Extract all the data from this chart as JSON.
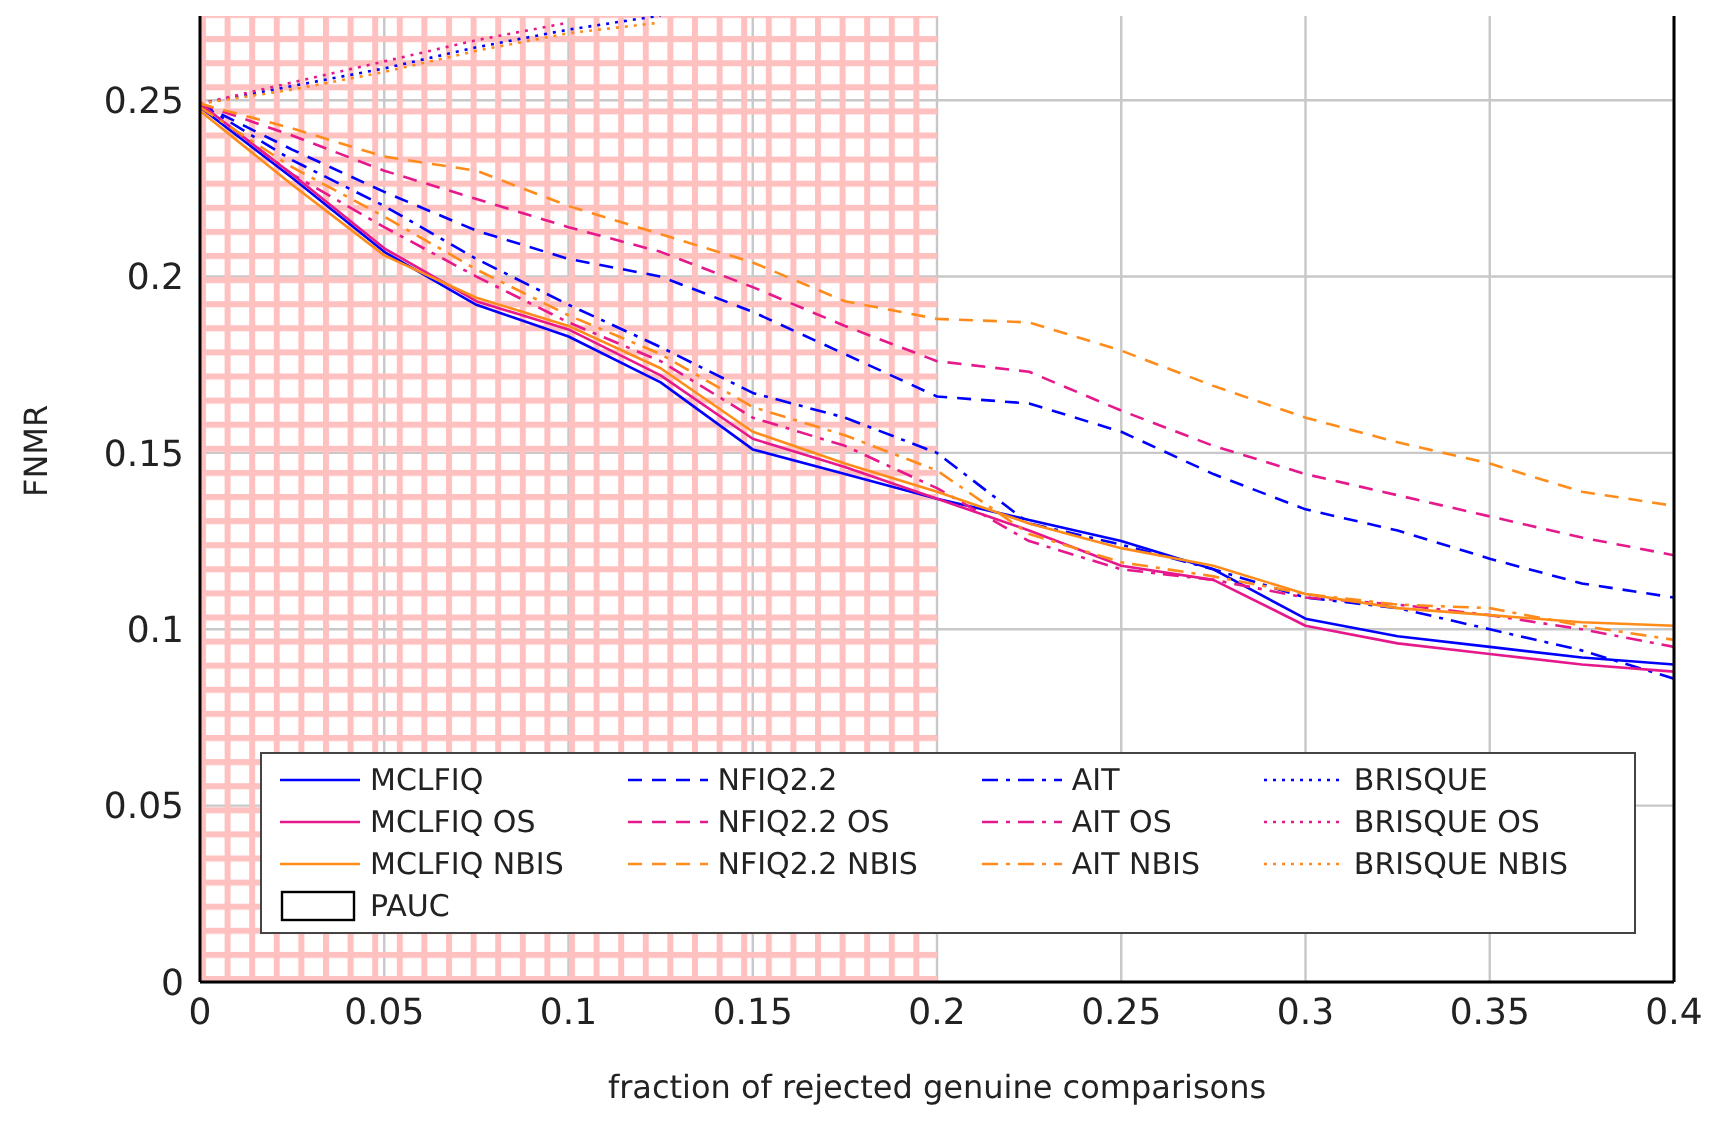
{
  "chart_data": {
    "type": "line",
    "xlabel": "fraction of rejected genuine comparisons",
    "ylabel": "FNMR",
    "x": [
      0,
      0.025,
      0.05,
      0.075,
      0.1,
      0.125,
      0.15,
      0.175,
      0.2,
      0.225,
      0.25,
      0.275,
      0.3,
      0.325,
      0.35,
      0.375,
      0.4
    ],
    "xlim": [
      0,
      0.4
    ],
    "xticks": [
      0,
      0.05,
      0.1,
      0.15,
      0.2,
      0.25,
      0.3,
      0.35,
      0.4
    ],
    "ylim": [
      0,
      0.275
    ],
    "yticks": [
      0,
      0.05,
      0.1,
      0.15,
      0.2,
      0.25
    ],
    "grid": true,
    "legend": "bottom",
    "marker": "none",
    "bands": [
      {
        "axis": "x",
        "from": 0,
        "to": 0.2,
        "label": "PAUC",
        "color": "#ffc0c0"
      }
    ],
    "series": [
      {
        "name": "MCLFIQ",
        "color": "#0000ff",
        "line_style": "solid",
        "values": [
          0.248,
          0.228,
          0.207,
          0.192,
          0.183,
          0.17,
          0.151,
          0.144,
          0.137,
          0.131,
          0.125,
          0.117,
          0.103,
          0.098,
          0.095,
          0.092,
          0.09
        ]
      },
      {
        "name": "NFIQ2.2",
        "color": "#0000ff",
        "line_style": "dashed",
        "values": [
          0.249,
          0.236,
          0.224,
          0.213,
          0.205,
          0.2,
          0.19,
          0.178,
          0.166,
          0.164,
          0.156,
          0.144,
          0.134,
          0.128,
          0.12,
          0.113,
          0.109
        ]
      },
      {
        "name": "AIT",
        "color": "#0000ff",
        "line_style": "dashdot",
        "values": [
          0.249,
          0.233,
          0.22,
          0.205,
          0.192,
          0.18,
          0.167,
          0.16,
          0.15,
          0.13,
          0.124,
          0.117,
          0.109,
          0.106,
          0.1,
          0.094,
          0.086
        ]
      },
      {
        "name": "BRISQUE",
        "color": "#0000ff",
        "line_style": "dotted",
        "values": [
          0.249,
          0.254,
          0.259,
          0.265,
          0.27,
          0.274,
          null,
          null,
          null,
          null,
          null,
          null,
          null,
          null,
          null,
          null,
          null
        ]
      },
      {
        "name": "MCLFIQ OS",
        "color": "#e6198c",
        "line_style": "solid",
        "values": [
          0.249,
          0.229,
          0.208,
          0.193,
          0.185,
          0.172,
          0.154,
          0.146,
          0.137,
          0.128,
          0.118,
          0.114,
          0.101,
          0.096,
          0.093,
          0.09,
          0.088
        ]
      },
      {
        "name": "NFIQ2.2 OS",
        "color": "#e6198c",
        "line_style": "dashed",
        "values": [
          0.249,
          0.24,
          0.23,
          0.222,
          0.214,
          0.207,
          0.197,
          0.186,
          0.176,
          0.173,
          0.162,
          0.152,
          0.144,
          0.138,
          0.132,
          0.126,
          0.121
        ]
      },
      {
        "name": "AIT OS",
        "color": "#e6198c",
        "line_style": "dashdot",
        "values": [
          0.249,
          0.229,
          0.214,
          0.2,
          0.187,
          0.176,
          0.16,
          0.152,
          0.14,
          0.125,
          0.117,
          0.114,
          0.109,
          0.107,
          0.104,
          0.1,
          0.095
        ]
      },
      {
        "name": "BRISQUE OS",
        "color": "#e6198c",
        "line_style": "dotted",
        "values": [
          0.249,
          0.255,
          0.261,
          0.267,
          0.272,
          null,
          null,
          null,
          null,
          null,
          null,
          null,
          null,
          null,
          null,
          null,
          null
        ]
      },
      {
        "name": "MCLFIQ NBIS",
        "color": "#ff8c1a",
        "line_style": "solid",
        "values": [
          0.247,
          0.226,
          0.206,
          0.194,
          0.186,
          0.174,
          0.156,
          0.147,
          0.139,
          0.13,
          0.123,
          0.118,
          0.11,
          0.106,
          0.104,
          0.102,
          0.101
        ]
      },
      {
        "name": "NFIQ2.2 NBIS",
        "color": "#ff8c1a",
        "line_style": "dashed",
        "values": [
          0.249,
          0.242,
          0.234,
          0.23,
          0.22,
          0.212,
          0.204,
          0.193,
          0.188,
          0.187,
          0.179,
          0.169,
          0.16,
          0.153,
          0.147,
          0.139,
          0.135
        ]
      },
      {
        "name": "AIT NBIS",
        "color": "#ff8c1a",
        "line_style": "dashdot",
        "values": [
          0.248,
          0.231,
          0.217,
          0.202,
          0.189,
          0.178,
          0.163,
          0.155,
          0.145,
          0.127,
          0.119,
          0.115,
          0.11,
          0.107,
          0.106,
          0.101,
          0.097
        ]
      },
      {
        "name": "BRISQUE NBIS",
        "color": "#ff8c1a",
        "line_style": "dotted",
        "values": [
          0.249,
          0.253,
          0.258,
          0.264,
          0.269,
          0.272,
          null,
          null,
          null,
          null,
          null,
          null,
          null,
          null,
          null,
          null,
          null
        ]
      }
    ]
  }
}
